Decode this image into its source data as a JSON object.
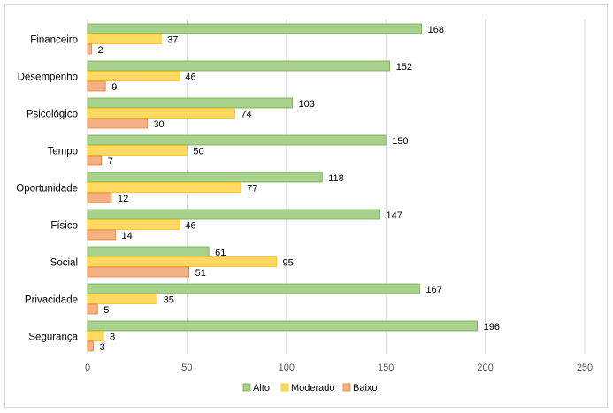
{
  "chart_data": {
    "type": "bar",
    "orientation": "horizontal",
    "categories": [
      "Financeiro",
      "Desempenho",
      "Psicológico",
      "Tempo",
      "Oportunidade",
      "Físico",
      "Social",
      "Privacidade",
      "Segurança"
    ],
    "series": [
      {
        "name": "Alto",
        "values": [
          168,
          152,
          103,
          150,
          118,
          147,
          61,
          167,
          196
        ],
        "color": "#a9d18e",
        "stroke": "#70ad47"
      },
      {
        "name": "Moderado",
        "values": [
          37,
          46,
          74,
          50,
          77,
          46,
          95,
          35,
          8
        ],
        "color": "#ffd966",
        "stroke": "#ffc000"
      },
      {
        "name": "Baixo",
        "values": [
          2,
          9,
          30,
          7,
          12,
          14,
          51,
          5,
          3
        ],
        "color": "#f4b183",
        "stroke": "#ed7d31"
      }
    ],
    "xlim": [
      0,
      250
    ],
    "xticks": [
      0,
      50,
      100,
      150,
      200,
      250
    ],
    "grid": true,
    "legend_position": "bottom",
    "data_labels": true
  }
}
